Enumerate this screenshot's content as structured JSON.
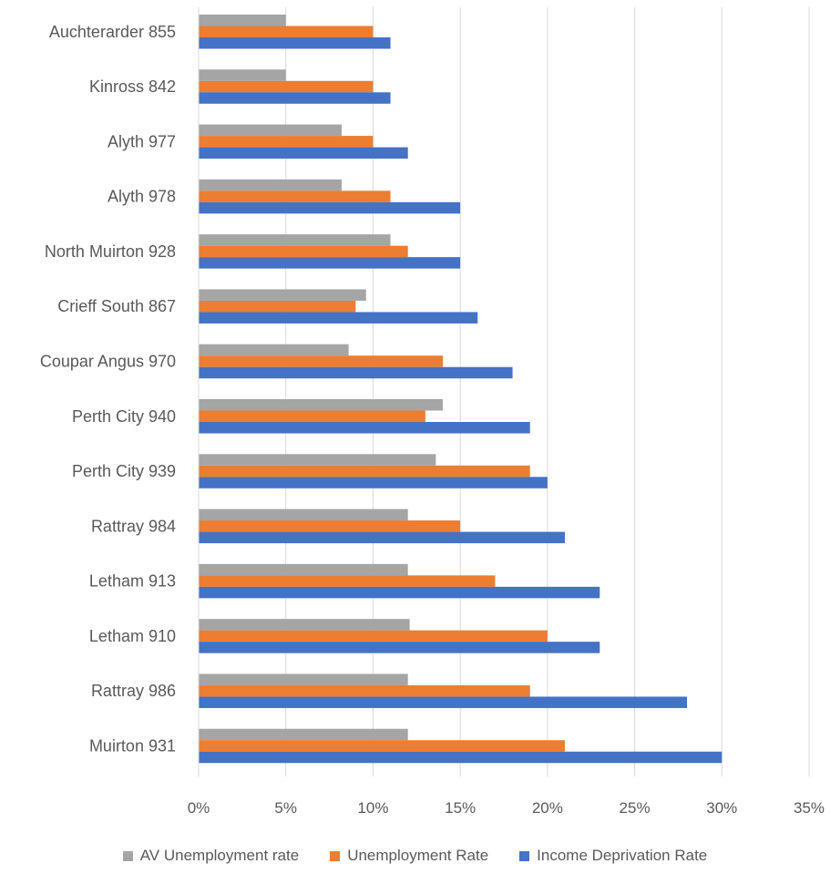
{
  "chart_data": {
    "type": "bar",
    "orientation": "horizontal",
    "categories": [
      "Auchterarder 855",
      "Kinross 842",
      "Alyth 977",
      "Alyth 978",
      "North Muirton 928",
      "Crieff South 867",
      "Coupar Angus 970",
      "Perth City 940",
      "Perth City 939",
      "Rattray 984",
      "Letham 913",
      "Letham 910",
      "Rattray 986",
      "Muirton 931"
    ],
    "series": [
      {
        "name": "AV Unemployment rate",
        "color": "#a5a5a5",
        "values": [
          5,
          5,
          8.2,
          8.2,
          11,
          9.6,
          8.6,
          14,
          13.6,
          12,
          12,
          12.1,
          12,
          12
        ]
      },
      {
        "name": "Unemployment Rate",
        "color": "#ed7d31",
        "values": [
          10,
          10,
          10,
          11,
          12,
          9,
          14,
          13,
          19,
          15,
          17,
          20,
          19,
          21
        ]
      },
      {
        "name": "Income Deprivation Rate",
        "color": "#4472c4",
        "values": [
          11,
          11,
          12,
          15,
          15,
          16,
          18,
          19,
          20,
          21,
          23,
          23,
          28,
          30
        ]
      }
    ],
    "x_axis": {
      "min": 0,
      "max": 35,
      "tick_labels": [
        "0%",
        "5%",
        "10%",
        "15%",
        "20%",
        "25%",
        "30%",
        "35%"
      ],
      "unit": "%"
    },
    "gridlines": "vertical",
    "legend_position": "bottom"
  }
}
